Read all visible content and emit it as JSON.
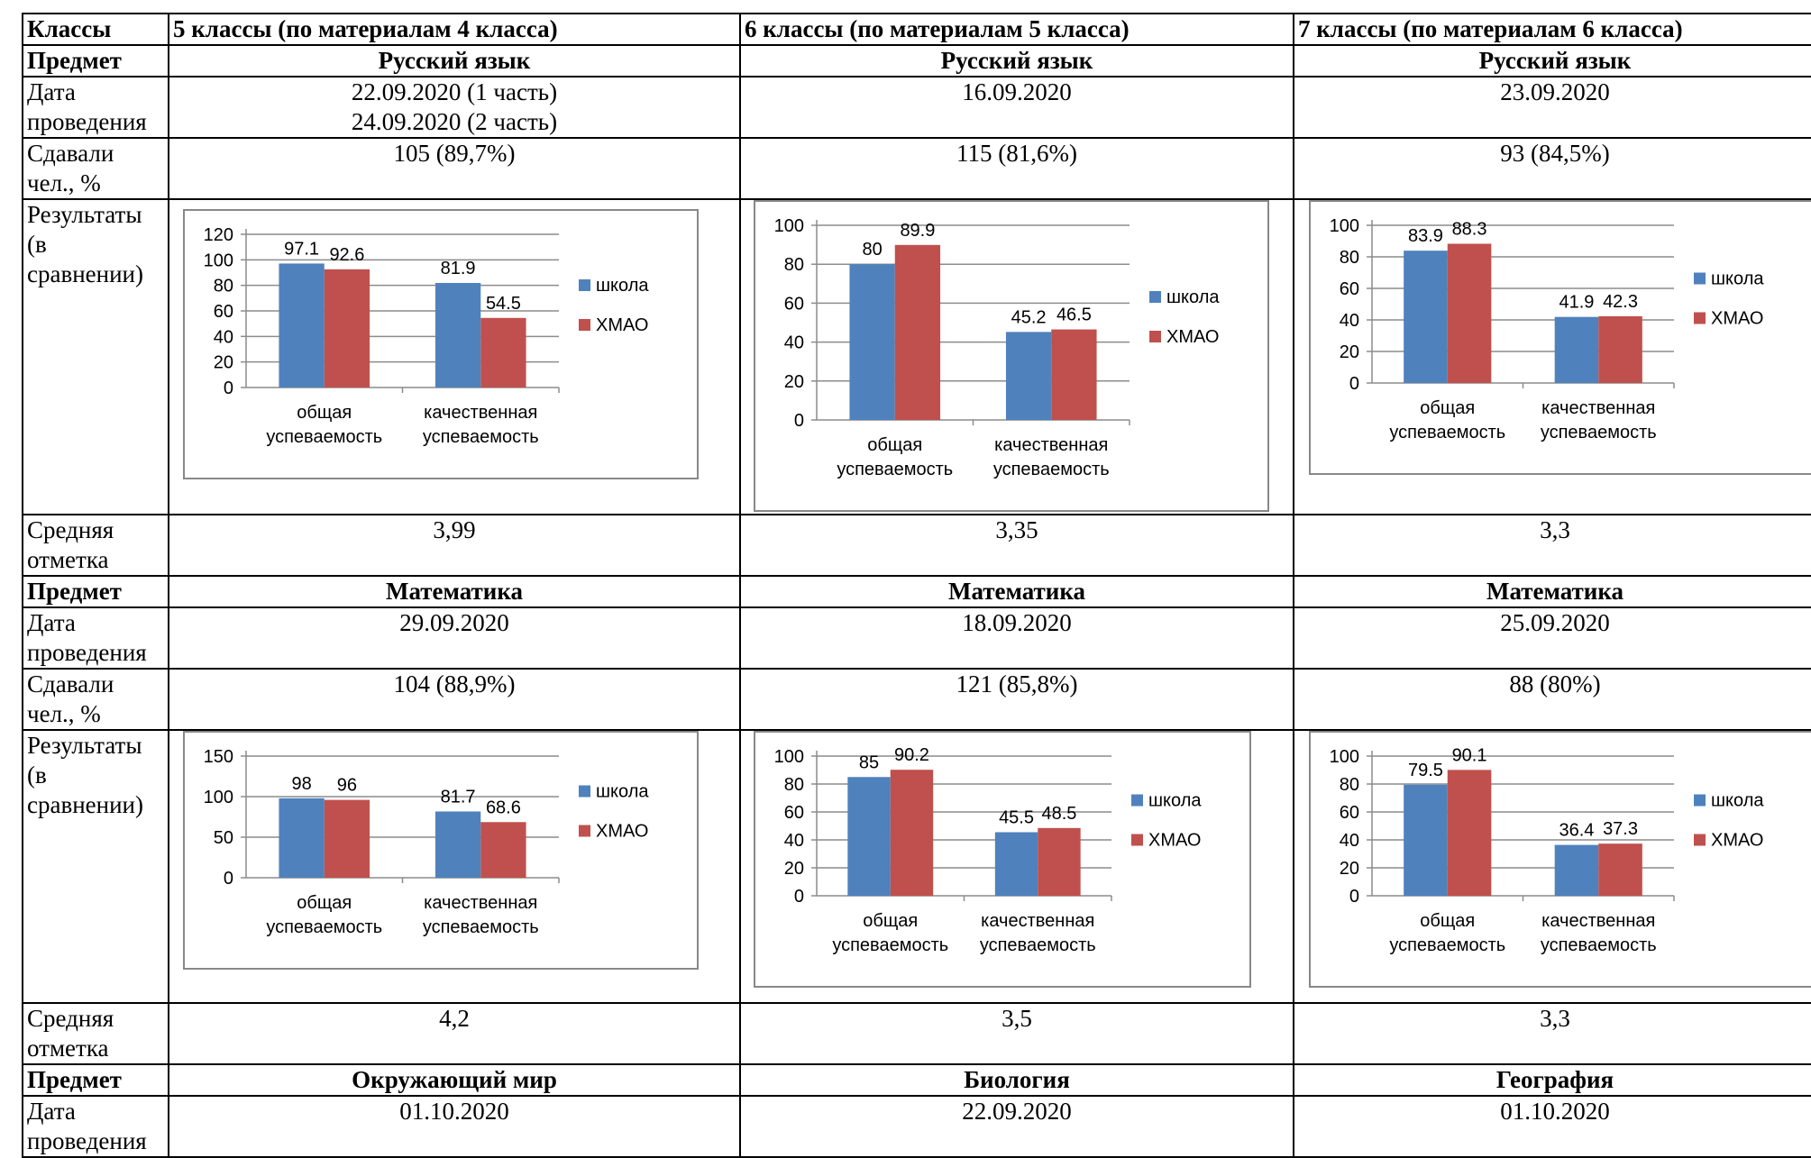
{
  "header": {
    "col0": "Классы",
    "col1": "5 классы (по материалам 4 класса)",
    "col2": "6 классы (по материалам 5 класса)",
    "col3": "7 классы (по материалам 6 класса)"
  },
  "labels": {
    "subject": "Предмет",
    "date": "Дата проведения",
    "took": "Сдавали чел., %",
    "results": "Результаты (в сравнении)",
    "avg": "Средняя отметка"
  },
  "blocks": [
    {
      "subjects": [
        "Русский язык",
        "Русский язык",
        "Русский язык"
      ],
      "dates": [
        [
          "22.09.2020 (1 часть)",
          "24.09.2020 (2 часть)"
        ],
        [
          "16.09.2020"
        ],
        [
          "23.09.2020"
        ]
      ],
      "took": [
        "105 (89,7%)",
        "115 (81,6%)",
        "93 (84,5%)"
      ],
      "avg": [
        "3,99",
        "3,35",
        "3,3"
      ]
    },
    {
      "subjects": [
        "Математика",
        "Математика",
        "Математика"
      ],
      "dates": [
        [
          "29.09.2020"
        ],
        [
          "18.09.2020"
        ],
        [
          "25.09.2020"
        ]
      ],
      "took": [
        "104 (88,9%)",
        "121 (85,8%)",
        "88 (80%)"
      ],
      "avg": [
        "4,2",
        "3,5",
        "3,3"
      ]
    },
    {
      "subjects": [
        "Окружающий мир",
        "Биология",
        "География"
      ],
      "dates": [
        [
          "01.10.2020"
        ],
        [
          "22.09.2020"
        ],
        [
          "01.10.2020"
        ]
      ]
    }
  ],
  "chart_data": [
    {
      "type": "bar",
      "categories": [
        "общая успеваемость",
        "качественная успеваемость"
      ],
      "series": [
        {
          "name": "школа",
          "values": [
            97.1,
            81.9
          ]
        },
        {
          "name": "ХМАО",
          "values": [
            92.6,
            54.5
          ]
        }
      ],
      "ylim": [
        0,
        120
      ],
      "yticks": [
        0,
        20,
        40,
        60,
        80,
        100,
        120
      ],
      "legend": "right",
      "colors": [
        "#4F81BD",
        "#C0504D"
      ]
    },
    {
      "type": "bar",
      "categories": [
        "общая успеваемость",
        "качественная успеваемость"
      ],
      "series": [
        {
          "name": "школа",
          "values": [
            80,
            45.2
          ]
        },
        {
          "name": "ХМАО",
          "values": [
            89.9,
            46.5
          ]
        }
      ],
      "ylim": [
        0,
        100
      ],
      "yticks": [
        0,
        20,
        40,
        60,
        80,
        100
      ],
      "legend": "right",
      "colors": [
        "#4F81BD",
        "#C0504D"
      ]
    },
    {
      "type": "bar",
      "categories": [
        "общая успеваемость",
        "качественная успеваемость"
      ],
      "series": [
        {
          "name": "школа",
          "values": [
            83.9,
            41.9
          ]
        },
        {
          "name": "ХМАО",
          "values": [
            88.3,
            42.3
          ]
        }
      ],
      "ylim": [
        0,
        100
      ],
      "yticks": [
        0,
        20,
        40,
        60,
        80,
        100
      ],
      "legend": "right",
      "colors": [
        "#4F81BD",
        "#C0504D"
      ]
    },
    {
      "type": "bar",
      "categories": [
        "общая успеваемость",
        "качественная успеваемость"
      ],
      "series": [
        {
          "name": "школа",
          "values": [
            98,
            81.7
          ]
        },
        {
          "name": "ХМАО",
          "values": [
            96,
            68.6
          ]
        }
      ],
      "ylim": [
        0,
        150
      ],
      "yticks": [
        0,
        50,
        100,
        150
      ],
      "legend": "right",
      "colors": [
        "#4F81BD",
        "#C0504D"
      ]
    },
    {
      "type": "bar",
      "categories": [
        "общая успеваемость",
        "качественная успеваемость"
      ],
      "series": [
        {
          "name": "школа",
          "values": [
            85,
            45.5
          ]
        },
        {
          "name": "ХМАО",
          "values": [
            90.2,
            48.5
          ]
        }
      ],
      "ylim": [
        0,
        100
      ],
      "yticks": [
        0,
        20,
        40,
        60,
        80,
        100
      ],
      "legend": "right",
      "colors": [
        "#4F81BD",
        "#C0504D"
      ]
    },
    {
      "type": "bar",
      "categories": [
        "общая успеваемость",
        "качественная успеваемость"
      ],
      "series": [
        {
          "name": "школа",
          "values": [
            79.5,
            36.4
          ]
        },
        {
          "name": "ХМАО",
          "values": [
            90.1,
            37.3
          ]
        }
      ],
      "ylim": [
        0,
        100
      ],
      "yticks": [
        0,
        20,
        40,
        60,
        80,
        100
      ],
      "legend": "right",
      "colors": [
        "#4F81BD",
        "#C0504D"
      ]
    }
  ]
}
